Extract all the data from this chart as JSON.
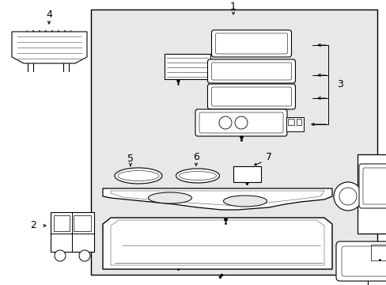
{
  "bg_color": "#ffffff",
  "box_bg": "#e8e8e8",
  "line_color": "#000000",
  "fig_width": 4.89,
  "fig_height": 3.6,
  "dpi": 100
}
